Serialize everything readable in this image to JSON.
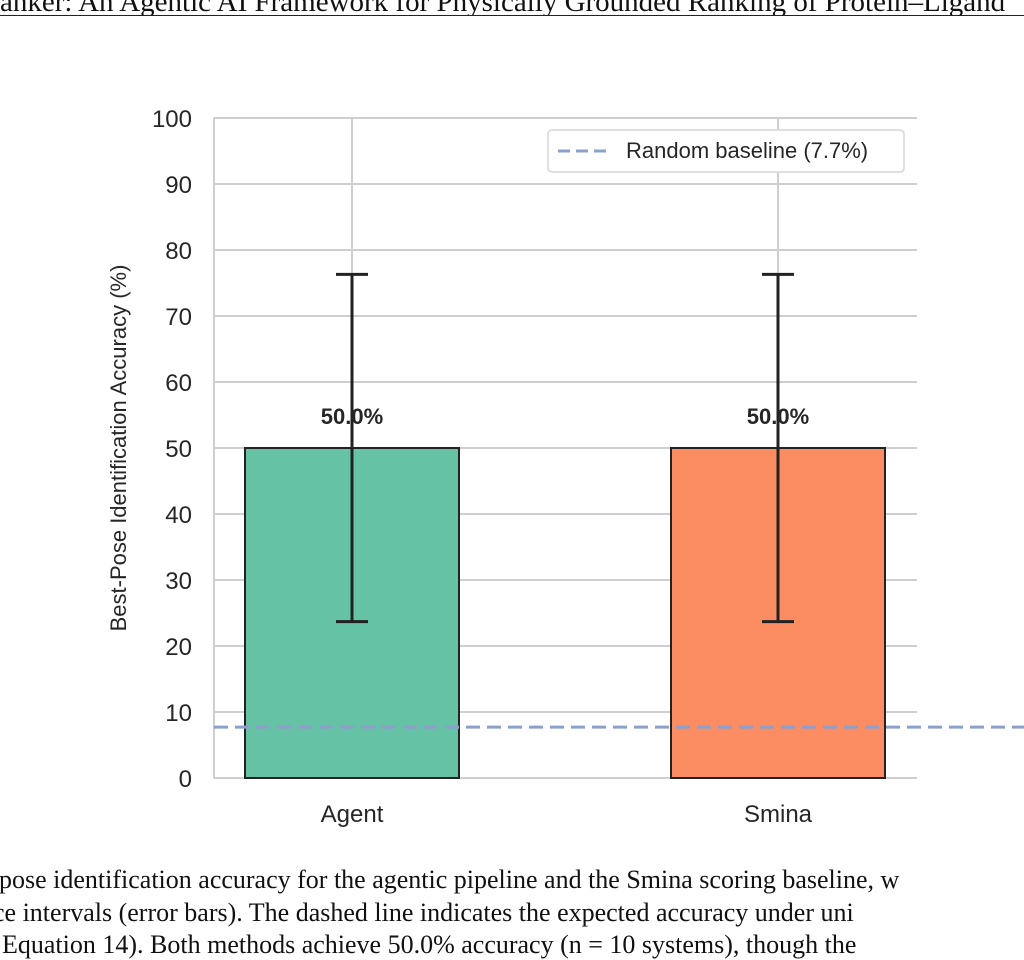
{
  "page": {
    "header": "anker: An Agentic AI Framework for Physically Grounded Ranking of Protein–Ligand",
    "caption_lines": [
      "pose identification accuracy for the agentic pipeline and the Smina scoring baseline, w",
      "ce intervals (error bars). The dashed line indicates the expected accuracy under uni",
      "Equation 14). Both methods achieve 50.0% accuracy (n = 10 systems), though the"
    ]
  },
  "chart_data": {
    "type": "bar",
    "categories": [
      "Agent",
      "Smina"
    ],
    "values": [
      50.0,
      50.0
    ],
    "error_bars": [
      {
        "low": 23.7,
        "high": 76.3
      },
      {
        "low": 23.7,
        "high": 76.3
      }
    ],
    "data_labels": [
      "50.0%",
      "50.0%"
    ],
    "colors": [
      "#66c2a5",
      "#fc8d62"
    ],
    "bar_edge_color": "#222222",
    "xlabel": "",
    "ylabel": "Best-Pose Identification Accuracy (%)",
    "ylim": [
      0,
      100
    ],
    "yticks": [
      0,
      10,
      20,
      30,
      40,
      50,
      60,
      70,
      80,
      90,
      100
    ],
    "grid": true,
    "baseline": {
      "value": 7.7,
      "label": "Random baseline (7.7%)",
      "color": "#8da0cb",
      "style": "dashed"
    },
    "legend_position": "top-right"
  }
}
